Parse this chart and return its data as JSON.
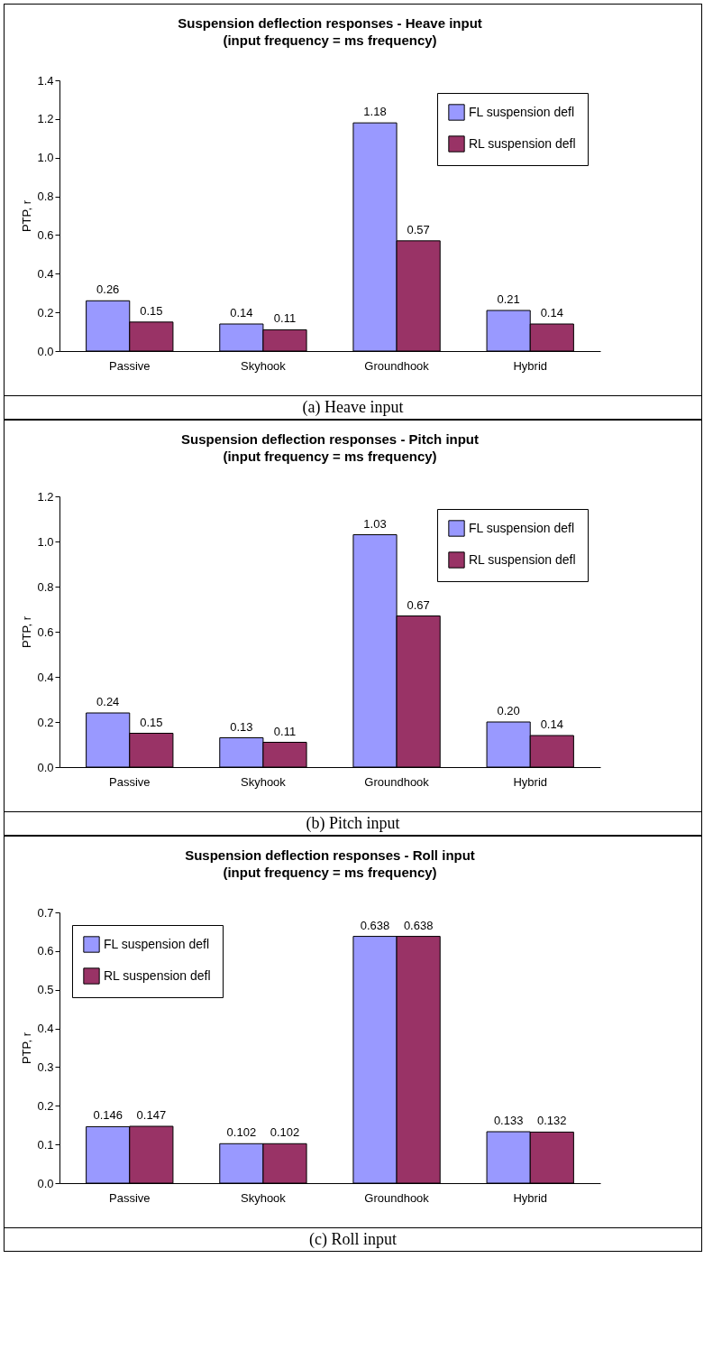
{
  "chart_data": [
    {
      "type": "bar",
      "title": "Suspension deflection responses - Heave input",
      "subtitle": "(input frequency = ms frequency)",
      "ylabel": "PTP, r",
      "categories": [
        "Passive",
        "Skyhook",
        "Groundhook",
        "Hybrid"
      ],
      "series": [
        {
          "name": "FL suspension defl",
          "color": "#9999ff",
          "values": [
            0.26,
            0.14,
            1.18,
            0.21
          ]
        },
        {
          "name": "RL suspension defl",
          "color": "#993366",
          "values": [
            0.15,
            0.11,
            0.57,
            0.14
          ]
        }
      ],
      "ylim": [
        0,
        1.4
      ],
      "yticks": [
        {
          "value": 0,
          "label": "0.0"
        },
        {
          "value": 0.2,
          "label": "0.2"
        },
        {
          "value": 0.4,
          "label": "0.4"
        },
        {
          "value": 0.6,
          "label": "0.6"
        },
        {
          "value": 0.8,
          "label": "0.8"
        },
        {
          "value": 1.0,
          "label": "1.0"
        },
        {
          "value": 1.2,
          "label": "1.2"
        },
        {
          "value": 1.4,
          "label": "1.4"
        }
      ],
      "data_labels": true,
      "legend": "top right",
      "annotations": [
        "(a) Heave input"
      ]
    },
    {
      "type": "bar",
      "title": "Suspension deflection responses - Pitch input",
      "subtitle": "(input frequency = ms frequency)",
      "ylabel": "PTP, r",
      "categories": [
        "Passive",
        "Skyhook",
        "Groundhook",
        "Hybrid"
      ],
      "series": [
        {
          "name": "FL suspension defl",
          "color": "#9999ff",
          "values": [
            0.24,
            0.13,
            1.03,
            0.2
          ],
          "value_labels": [
            "0.24",
            "0.13",
            "1.03",
            "0.20"
          ]
        },
        {
          "name": "RL suspension defl",
          "color": "#993366",
          "values": [
            0.15,
            0.11,
            0.67,
            0.14
          ],
          "value_labels": [
            "0.15",
            "0.11",
            "0.67",
            "0.14"
          ]
        }
      ],
      "ylim": [
        0,
        1.2
      ],
      "yticks": [
        {
          "value": 0,
          "label": "0.0"
        },
        {
          "value": 0.2,
          "label": "0.2"
        },
        {
          "value": 0.4,
          "label": "0.4"
        },
        {
          "value": 0.6,
          "label": "0.6"
        },
        {
          "value": 0.8,
          "label": "0.8"
        },
        {
          "value": 1.0,
          "label": "1.0"
        },
        {
          "value": 1.2,
          "label": "1.2"
        }
      ],
      "legend": "top right",
      "annotations": [
        "(b) Pitch input"
      ]
    },
    {
      "type": "bar",
      "title": "Suspension deflection responses - Roll input",
      "subtitle": "(input frequency = ms frequency)",
      "ylabel": "PTP, r",
      "categories": [
        "Passive",
        "Skyhook",
        "Groundhook",
        "Hybrid"
      ],
      "series": [
        {
          "name": "FL suspension defl",
          "color": "#9999ff",
          "values": [
            0.146,
            0.102,
            0.638,
            0.133
          ]
        },
        {
          "name": "RL suspension defl",
          "color": "#993366",
          "values": [
            0.147,
            0.102,
            0.638,
            0.132
          ]
        }
      ],
      "ylim": [
        0,
        0.7
      ],
      "yticks": [
        {
          "value": 0,
          "label": "0.0"
        },
        {
          "value": 0.1,
          "label": "0.1"
        },
        {
          "value": 0.2,
          "label": "0.2"
        },
        {
          "value": 0.3,
          "label": "0.3"
        },
        {
          "value": 0.4,
          "label": "0.4"
        },
        {
          "value": 0.5,
          "label": "0.5"
        },
        {
          "value": 0.6,
          "label": "0.6"
        },
        {
          "value": 0.7,
          "label": "0.7"
        }
      ],
      "data_labels": true,
      "legend": "top left",
      "annotations": [
        "(c) Roll input"
      ]
    }
  ]
}
